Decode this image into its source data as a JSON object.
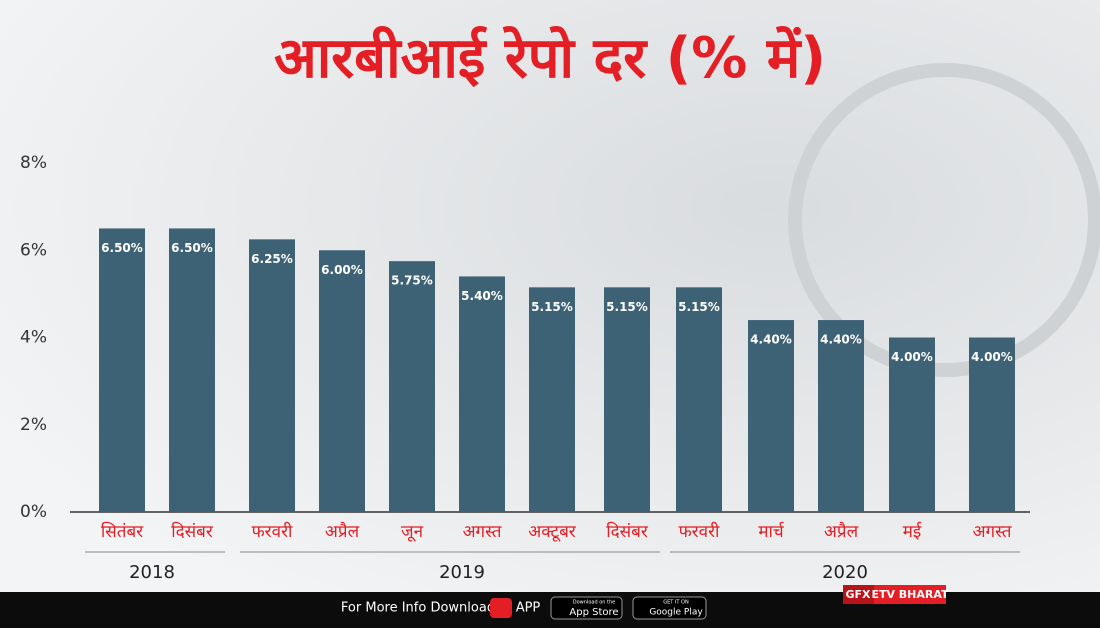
{
  "chart_data": {
    "type": "bar",
    "title": "आरबीआई रेपो दर (% में)",
    "categories": [
      "सितंबर",
      "दिसंबर",
      "फरवरी",
      "अप्रैल",
      "जून",
      "अगस्त",
      "अक्टूबर",
      "दिसंबर",
      "फरवरी",
      "मार्च",
      "अप्रैल",
      "मई",
      "अगस्त"
    ],
    "values": [
      6.5,
      6.5,
      6.25,
      6.0,
      5.75,
      5.4,
      5.15,
      5.15,
      5.15,
      4.4,
      4.4,
      4.0,
      4.0
    ],
    "value_labels": [
      "6.50%",
      "6.50%",
      "6.25%",
      "6.00%",
      "5.75%",
      "5.40%",
      "5.15%",
      "5.15%",
      "5.15%",
      "4.40%",
      "4.40%",
      "4.00%",
      "4.00%"
    ],
    "color": "#3e6275",
    "years": [
      "2018",
      "2019",
      "2020"
    ],
    "ylim": [
      0,
      8
    ],
    "yticks": [
      {
        "value": 0,
        "label": "0%"
      },
      {
        "value": 2,
        "label": "2%"
      },
      {
        "value": 4,
        "label": "4%"
      },
      {
        "value": 6,
        "label": "6%"
      },
      {
        "value": 8,
        "label": "8%"
      }
    ],
    "grid": false
  },
  "footer": {
    "text": "For More Info Download",
    "app": "APP",
    "app_store_small": "Download on the",
    "app_store": "App Store",
    "google_small": "GET IT ON",
    "google": "Google Play",
    "gfx": "GFX",
    "brand": "ETV BHARAT"
  }
}
